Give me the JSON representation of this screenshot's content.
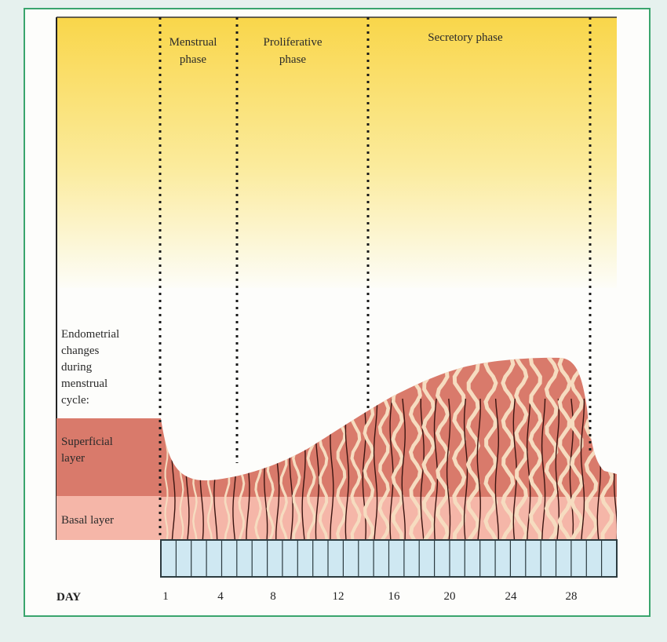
{
  "phases": {
    "menstrual": [
      "Menstrual",
      "phase"
    ],
    "proliferative": [
      "Proliferative",
      "phase"
    ],
    "secretory": [
      "Secretory phase"
    ]
  },
  "left_labels": {
    "endometrial": [
      "Endometrial",
      "changes",
      "during",
      "menstrual",
      "cycle:"
    ],
    "superficial": [
      "Superficial",
      "layer"
    ],
    "basal": [
      "Basal layer"
    ]
  },
  "axis": {
    "label": "DAY",
    "ticks": [
      "1",
      "4",
      "8",
      "12",
      "16",
      "20",
      "24",
      "28"
    ]
  },
  "colors": {
    "yellow": "#f9d64a",
    "superficial": "#d97a6b",
    "basal": "#f5b6a8",
    "gland": "#f6dcc0",
    "vessel": "#3a1410",
    "day_cell": "#cfe8f2",
    "border": "#3aa56d"
  }
}
